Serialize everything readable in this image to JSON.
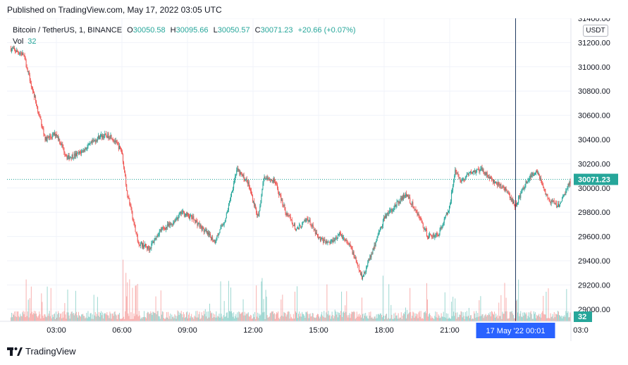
{
  "published": "Published on TradingView.com, May 17, 2022 03:05 UTC",
  "legend": {
    "symbol": "Bitcoin / TetherUS, 1, BINANCE",
    "o_label": "O",
    "o_value": "30050.58",
    "h_label": "H",
    "h_value": "30095.66",
    "l_label": "L",
    "l_value": "30050.57",
    "c_label": "C",
    "c_value": "30071.23",
    "change": "+20.66 (+0.07%)"
  },
  "volume_legend": {
    "label": "Vol",
    "value": "32"
  },
  "currency": "USDT",
  "footer": {
    "brand": "TradingView",
    "logo_icon": "tradingview-logo-icon"
  },
  "colors": {
    "up": "#26a69a",
    "down": "#ef5350",
    "crosshair": "#1e3a5f",
    "badge": "#2962ff"
  },
  "chart_data": {
    "type": "candlestick",
    "interval": "1 minute",
    "price_axis": {
      "ylim": [
        28900,
        31400
      ],
      "ticks": [
        "29000.00",
        "29200.00",
        "29400.00",
        "29600.00",
        "29800.00",
        "30000.00",
        "30200.00",
        "30400.00",
        "30600.00",
        "30800.00",
        "31000.00",
        "31200.00",
        "31400.00"
      ]
    },
    "time_axis": {
      "ticks": [
        "03:00",
        "06:00",
        "09:00",
        "12:00",
        "15:00",
        "18:00",
        "21:00",
        "03:0"
      ],
      "crosshair_label": "17 May '22   00:01"
    },
    "last_price": "30071.23",
    "last_volume": "32",
    "grid": true,
    "price_path": [
      {
        "t": "00:55",
        "p": 31150
      },
      {
        "t": "01:30",
        "p": 31100
      },
      {
        "t": "02:00",
        "p": 30750
      },
      {
        "t": "02:30",
        "p": 30400
      },
      {
        "t": "03:00",
        "p": 30450
      },
      {
        "t": "03:30",
        "p": 30250
      },
      {
        "t": "04:00",
        "p": 30280
      },
      {
        "t": "04:30",
        "p": 30350
      },
      {
        "t": "05:00",
        "p": 30430
      },
      {
        "t": "05:30",
        "p": 30430
      },
      {
        "t": "06:00",
        "p": 30300
      },
      {
        "t": "06:15",
        "p": 29950
      },
      {
        "t": "06:45",
        "p": 29550
      },
      {
        "t": "07:15",
        "p": 29500
      },
      {
        "t": "07:45",
        "p": 29650
      },
      {
        "t": "08:15",
        "p": 29700
      },
      {
        "t": "08:45",
        "p": 29800
      },
      {
        "t": "09:15",
        "p": 29750
      },
      {
        "t": "09:45",
        "p": 29650
      },
      {
        "t": "10:15",
        "p": 29560
      },
      {
        "t": "10:45",
        "p": 29750
      },
      {
        "t": "11:15",
        "p": 30150
      },
      {
        "t": "11:45",
        "p": 30050
      },
      {
        "t": "12:15",
        "p": 29750
      },
      {
        "t": "12:30",
        "p": 30100
      },
      {
        "t": "13:00",
        "p": 30050
      },
      {
        "t": "13:30",
        "p": 29800
      },
      {
        "t": "14:00",
        "p": 29650
      },
      {
        "t": "14:30",
        "p": 29750
      },
      {
        "t": "15:00",
        "p": 29580
      },
      {
        "t": "15:30",
        "p": 29550
      },
      {
        "t": "16:00",
        "p": 29620
      },
      {
        "t": "16:30",
        "p": 29500
      },
      {
        "t": "17:00",
        "p": 29250
      },
      {
        "t": "17:30",
        "p": 29500
      },
      {
        "t": "18:00",
        "p": 29750
      },
      {
        "t": "18:30",
        "p": 29850
      },
      {
        "t": "19:00",
        "p": 29950
      },
      {
        "t": "19:30",
        "p": 29800
      },
      {
        "t": "20:00",
        "p": 29600
      },
      {
        "t": "20:30",
        "p": 29620
      },
      {
        "t": "21:00",
        "p": 29850
      },
      {
        "t": "21:15",
        "p": 30150
      },
      {
        "t": "21:30",
        "p": 30050
      },
      {
        "t": "22:00",
        "p": 30130
      },
      {
        "t": "22:30",
        "p": 30150
      },
      {
        "t": "23:00",
        "p": 30050
      },
      {
        "t": "23:30",
        "p": 30000
      },
      {
        "t": "00:00",
        "p": 29850
      },
      {
        "t": "00:30",
        "p": 30050
      },
      {
        "t": "01:00",
        "p": 30150
      },
      {
        "t": "01:30",
        "p": 29900
      },
      {
        "t": "02:00",
        "p": 29850
      },
      {
        "t": "02:30",
        "p": 30050
      },
      {
        "t": "03:05",
        "p": 30071
      }
    ]
  }
}
